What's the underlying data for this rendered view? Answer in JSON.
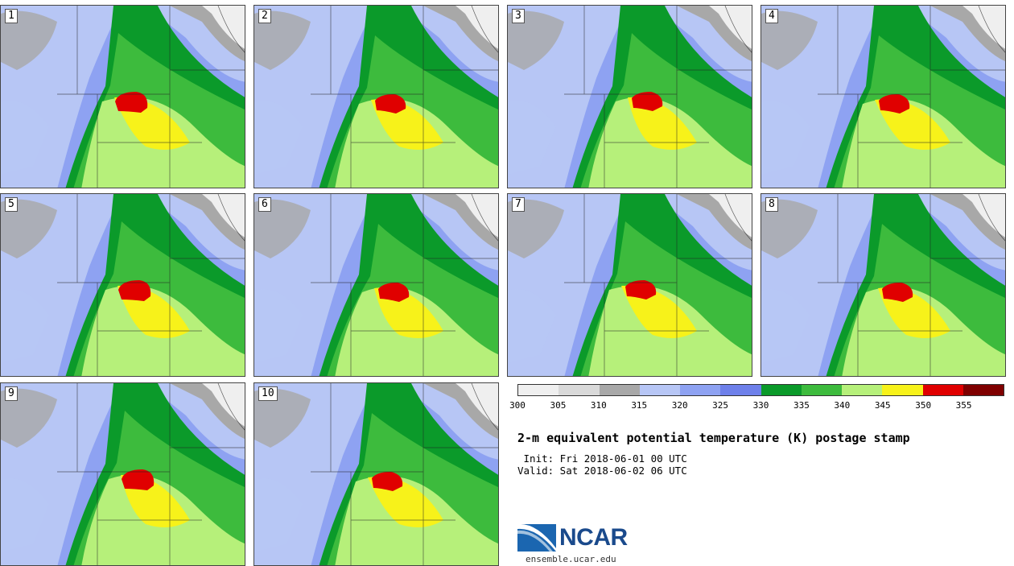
{
  "figure": {
    "title": "2-m equivalent potential temperature (K) postage stamp",
    "init": " Init: Fri 2018-06-01 00 UTC",
    "valid": "Valid: Sat 2018-06-02 06 UTC",
    "logo_text": "NCAR",
    "url": "ensemble.ucar.edu"
  },
  "members": [
    "1",
    "2",
    "3",
    "4",
    "5",
    "6",
    "7",
    "8",
    "9",
    "10"
  ],
  "colorbar": {
    "colors": [
      "#efefef",
      "#d9d9d9",
      "#a8a8a8",
      "#b7c6f5",
      "#8ea2f2",
      "#6e80ea",
      "#0b9a2a",
      "#3dbb3d",
      "#b6f07a",
      "#f7f21a",
      "#e00000",
      "#7f0000"
    ],
    "labels": [
      "300",
      "305",
      "310",
      "315",
      "320",
      "325",
      "330",
      "335",
      "340",
      "345",
      "350",
      "355"
    ]
  },
  "icons": {
    "logo": "ncar-logo-icon"
  }
}
